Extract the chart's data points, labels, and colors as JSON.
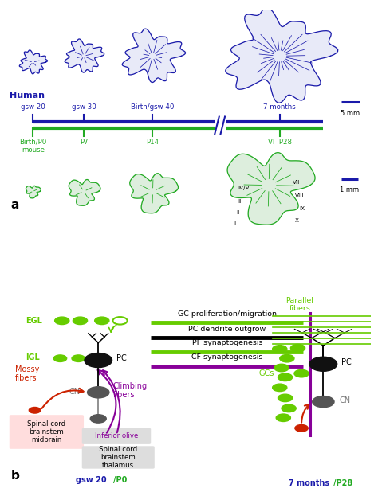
{
  "panel_a_label": "a",
  "panel_b_label": "b",
  "human_label": "Human",
  "human_timepoints": [
    "gsw 20",
    "gsw 30",
    "Birth/gsw 40",
    "7 months"
  ],
  "mouse_timepoints_labels": [
    "Birth/P0\nmouse",
    "P7",
    "P14",
    "P28"
  ],
  "scale_bar_human": "5 mm",
  "scale_bar_mouse": "1 mm",
  "blue": "#1a1aaa",
  "dark_blue": "#000088",
  "green": "#22aa22",
  "dark_green": "#118811",
  "gc_color": "#66cc00",
  "pc_color": "#111111",
  "cn_color": "#555555",
  "mossy_color": "#cc2200",
  "climbing_color": "#880099",
  "box_pink": "#ffdddd",
  "box_gray": "#dddddd",
  "text_blue": "#1a1aaa",
  "text_green": "#22aa22",
  "text_red": "#cc2200",
  "text_purple": "#880099"
}
